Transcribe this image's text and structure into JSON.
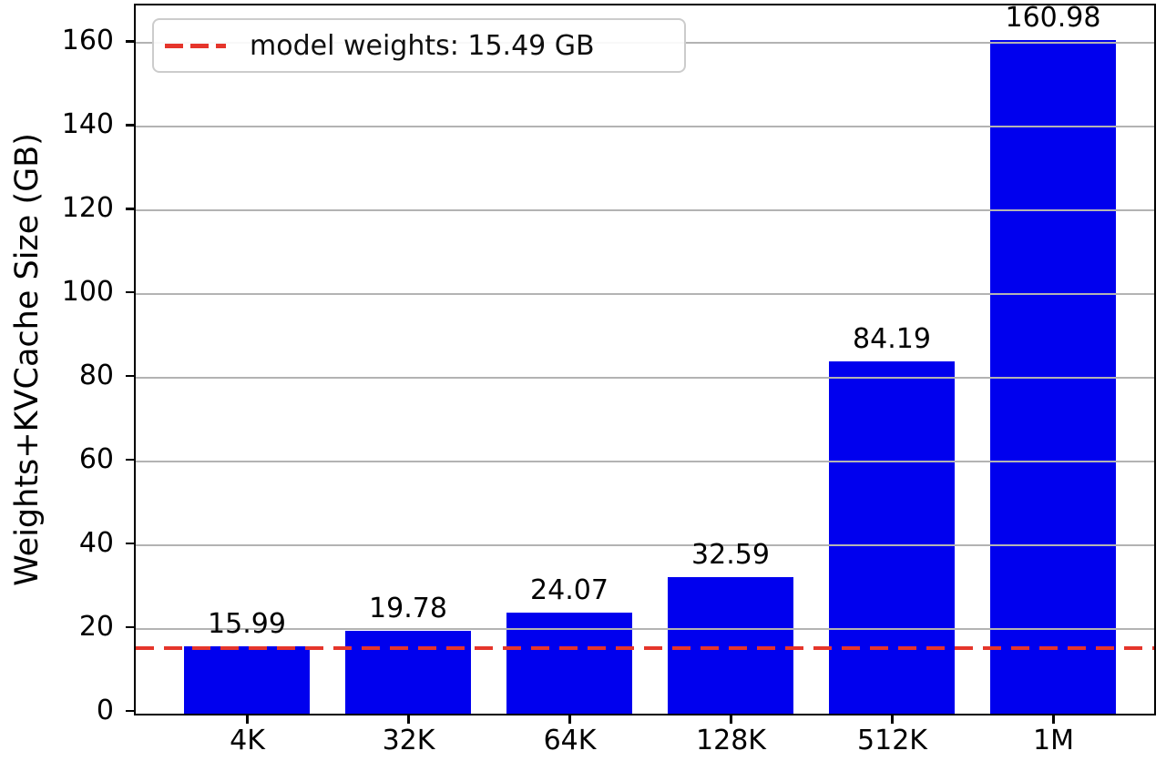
{
  "figure": {
    "background": "#ffffff"
  },
  "chart_data": {
    "type": "bar",
    "title": "",
    "xlabel": "",
    "ylabel": "Weights+KVCache Size (GB)",
    "categories": [
      "4K",
      "32K",
      "64K",
      "128K",
      "512K",
      "1M"
    ],
    "values": [
      15.99,
      19.78,
      24.07,
      32.59,
      84.19,
      160.98
    ],
    "bar_value_labels": [
      "15.99",
      "19.78",
      "24.07",
      "32.59",
      "84.19",
      "160.98"
    ],
    "yticks": [
      0,
      20,
      40,
      60,
      80,
      100,
      120,
      140,
      160
    ],
    "ylim": [
      0,
      169
    ],
    "grid": true,
    "grid_on_top_of_bars": true,
    "bar_color": "#0000ee",
    "grid_color": "#b3b3b3",
    "axis_color": "#000000",
    "reference_line": {
      "value": 15.49,
      "color": "#e5352b",
      "style": "dashed",
      "legend_label": "model weights: 15.49 GB"
    },
    "legend_position": "upper left"
  }
}
